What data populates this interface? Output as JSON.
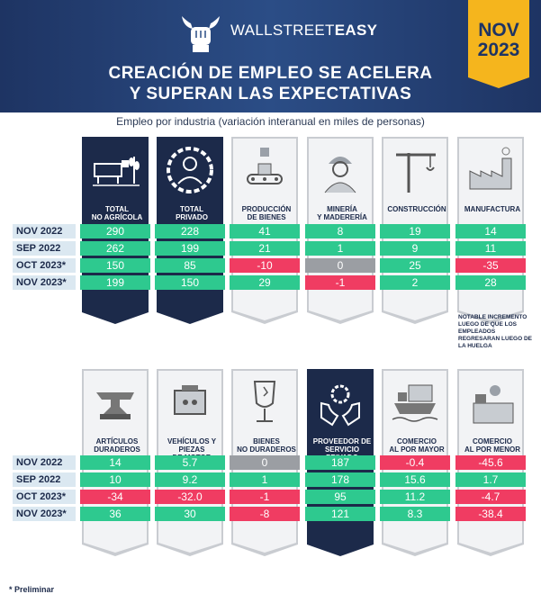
{
  "brand": {
    "part1": "WALLSTREET",
    "part2": "EASY"
  },
  "badge": {
    "month": "NOV",
    "year": "2023"
  },
  "title": {
    "line1": "CREACIÓN DE EMPLEO SE ACELERA",
    "line2": "Y SUPERAN LAS EXPECTATIVAS"
  },
  "subtitle": "Empleo por industria (variación interanual en miles de personas)",
  "row_labels": [
    "NOV 2022",
    "SEP 2022",
    "OCT 2023*",
    "NOV 2023*"
  ],
  "group1": [
    {
      "label": "TOTAL\nNO AGRÍCOLA",
      "icon": "cow-wheat-icon",
      "dark": true,
      "values": [
        "290",
        "262",
        "150",
        "199"
      ],
      "colors": [
        "g",
        "g",
        "g",
        "g"
      ]
    },
    {
      "label": "TOTAL\nPRIVADO",
      "icon": "worker-gear-icon",
      "dark": true,
      "values": [
        "228",
        "199",
        "85",
        "150"
      ],
      "colors": [
        "g",
        "g",
        "g",
        "g"
      ]
    },
    {
      "label": "PRODUCCIÓN\nDE BIENES",
      "icon": "conveyor-icon",
      "dark": false,
      "values": [
        "41",
        "21",
        "-10",
        "29"
      ],
      "colors": [
        "g",
        "g",
        "r",
        "g"
      ]
    },
    {
      "label": "MINERÍA\nY MADERERÍA",
      "icon": "miner-icon",
      "dark": false,
      "values": [
        "8",
        "1",
        "0",
        "-1"
      ],
      "colors": [
        "g",
        "g",
        "gr",
        "r"
      ]
    },
    {
      "label": "CONSTRUCCIÓN",
      "icon": "crane-icon",
      "dark": false,
      "values": [
        "19",
        "9",
        "25",
        "2"
      ],
      "colors": [
        "g",
        "g",
        "g",
        "g"
      ]
    },
    {
      "label": "MANUFACTURA",
      "icon": "factory-icon",
      "dark": false,
      "values": [
        "14",
        "11",
        "-35",
        "28"
      ],
      "colors": [
        "g",
        "g",
        "r",
        "g"
      ]
    }
  ],
  "group2": [
    {
      "label": "ARTÍCULOS\nDURADEROS",
      "icon": "anvil-icon",
      "dark": false,
      "values": [
        "14",
        "10",
        "-34",
        "36"
      ],
      "colors": [
        "g",
        "g",
        "r",
        "g"
      ]
    },
    {
      "label": "VEHÍCULOS Y PIEZAS\nDE MOTOR",
      "icon": "engine-icon",
      "dark": false,
      "values": [
        "5.7",
        "9.2",
        "-32.0",
        "30"
      ],
      "colors": [
        "g",
        "g",
        "r",
        "g"
      ]
    },
    {
      "label": "BIENES\nNO DURADEROS",
      "icon": "glass-icon",
      "dark": false,
      "values": [
        "0",
        "1",
        "-1",
        "-8"
      ],
      "colors": [
        "gr",
        "g",
        "r",
        "r"
      ]
    },
    {
      "label": "PROVEEDOR DE\nSERVICIO PRIVADO",
      "icon": "hands-gear-icon",
      "dark": true,
      "values": [
        "187",
        "178",
        "95",
        "121"
      ],
      "colors": [
        "g",
        "g",
        "g",
        "g"
      ]
    },
    {
      "label": "COMERCIO\nAL POR MAYOR",
      "icon": "ship-icon",
      "dark": false,
      "values": [
        "-0.4",
        "15.6",
        "11.2",
        "8.3"
      ],
      "colors": [
        "r",
        "g",
        "g",
        "g"
      ]
    },
    {
      "label": "COMERCIO\nAL POR MENOR",
      "icon": "cashier-icon",
      "dark": false,
      "values": [
        "-45.6",
        "1.7",
        "-4.7",
        "-38.4"
      ],
      "colors": [
        "r",
        "g",
        "r",
        "r"
      ]
    }
  ],
  "note": "NOTABLE INCREMENTO LUEGO DE QUE LOS EMPLEADOS REGRESARAN LUEGO DE LA HUELGA",
  "footnote": "* Preliminar"
}
